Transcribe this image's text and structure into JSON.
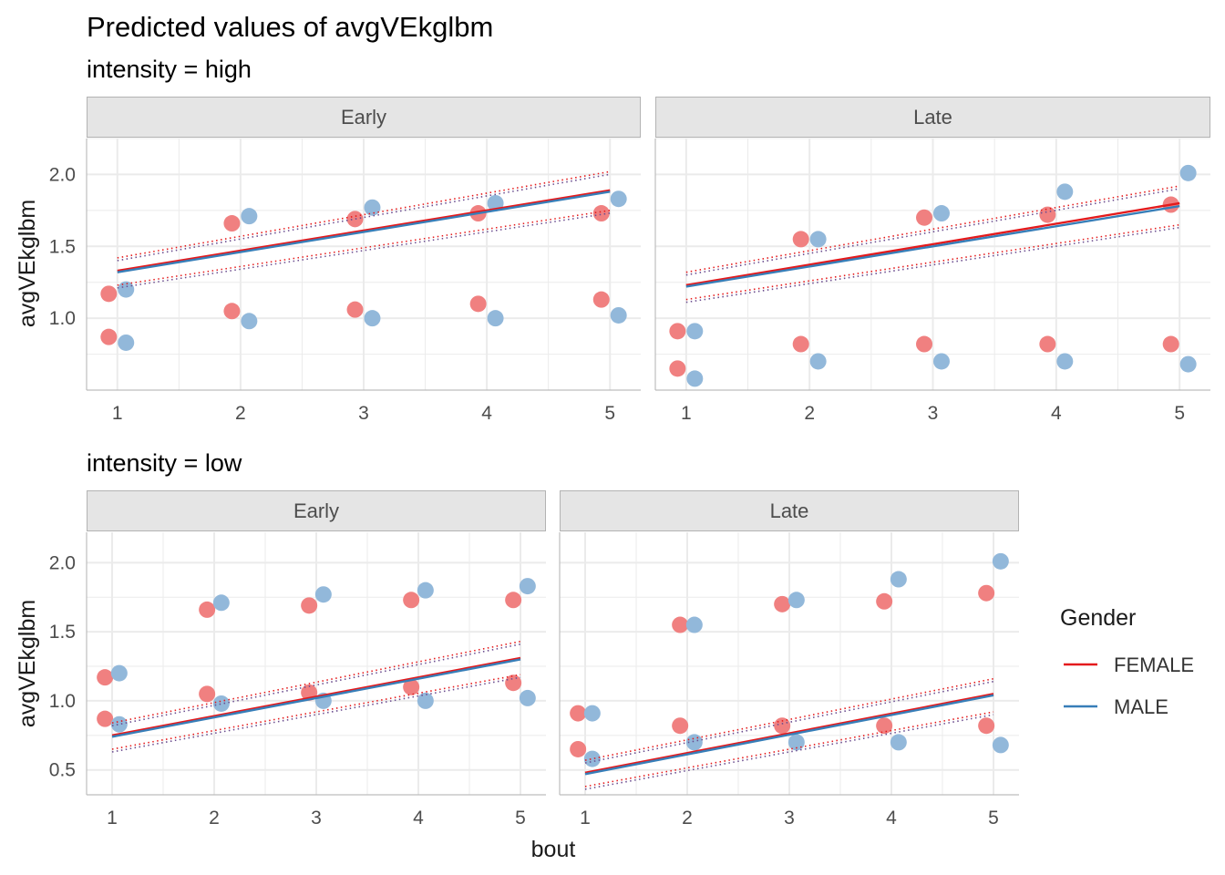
{
  "title": "Predicted values of avgVEkglbm",
  "x_label": "bout",
  "y_label": "avgVEkglbm",
  "legend": {
    "title": "Gender",
    "placement": "right",
    "entries": [
      {
        "name": "FEMALE",
        "color": "#E41A1C"
      },
      {
        "name": "MALE",
        "color": "#377EB8"
      }
    ]
  },
  "colors": {
    "strip_fill": "#e5e5e5",
    "strip_border": "#b3b3b3",
    "grid": "#ebebeb",
    "female_point": "#F08080",
    "male_point": "#92B8DA",
    "female_line": "#E41A1C",
    "male_line": "#377EB8",
    "ci_line": "#6b4c8e"
  },
  "chart_data": [
    {
      "type": "scatter",
      "group_title": "intensity = high",
      "facet": "Early",
      "x_ticks": [
        1,
        2,
        3,
        4,
        5
      ],
      "y_ticks": [
        1.0,
        1.5,
        2.0
      ],
      "y_tick_labels": [
        "1.0",
        "1.5",
        "2.0"
      ],
      "xlim": [
        0.75,
        5.25
      ],
      "ylim": [
        0.5,
        2.25
      ],
      "female_points": [
        [
          1,
          1.17
        ],
        [
          1,
          0.87
        ],
        [
          2,
          1.66
        ],
        [
          2,
          1.05
        ],
        [
          3,
          1.69
        ],
        [
          3,
          1.06
        ],
        [
          4,
          1.73
        ],
        [
          4,
          1.1
        ],
        [
          5,
          1.73
        ],
        [
          5,
          1.13
        ]
      ],
      "male_points": [
        [
          1,
          1.2
        ],
        [
          1,
          0.83
        ],
        [
          2,
          1.71
        ],
        [
          2,
          0.98
        ],
        [
          3,
          1.77
        ],
        [
          3,
          1.0
        ],
        [
          4,
          1.8
        ],
        [
          4,
          1.0
        ],
        [
          5,
          1.83
        ],
        [
          5,
          1.02
        ]
      ],
      "female_fit": [
        1.33,
        1.89
      ],
      "male_fit": [
        1.32,
        1.88
      ],
      "ci_upper": [
        1.42,
        2.02
      ],
      "ci_lower": [
        1.23,
        1.75
      ]
    },
    {
      "type": "scatter",
      "group_title": "intensity = high",
      "facet": "Late",
      "x_ticks": [
        1,
        2,
        3,
        4,
        5
      ],
      "y_ticks": [
        1.0,
        1.5,
        2.0
      ],
      "y_tick_labels": [
        "1.0",
        "1.5",
        "2.0"
      ],
      "xlim": [
        0.75,
        5.25
      ],
      "ylim": [
        0.5,
        2.25
      ],
      "female_points": [
        [
          1,
          0.91
        ],
        [
          1,
          0.65
        ],
        [
          2,
          1.55
        ],
        [
          2,
          0.82
        ],
        [
          3,
          1.7
        ],
        [
          3,
          0.82
        ],
        [
          4,
          1.72
        ],
        [
          4,
          0.82
        ],
        [
          5,
          1.79
        ],
        [
          5,
          0.82
        ]
      ],
      "male_points": [
        [
          1,
          0.91
        ],
        [
          1,
          0.58
        ],
        [
          2,
          1.55
        ],
        [
          2,
          0.7
        ],
        [
          3,
          1.73
        ],
        [
          3,
          0.7
        ],
        [
          4,
          1.88
        ],
        [
          4,
          0.7
        ],
        [
          5,
          2.01
        ],
        [
          5,
          0.68
        ]
      ],
      "female_fit": [
        1.23,
        1.8
      ],
      "male_fit": [
        1.22,
        1.78
      ],
      "ci_upper": [
        1.32,
        1.92
      ],
      "ci_lower": [
        1.13,
        1.65
      ]
    },
    {
      "type": "scatter",
      "group_title": "intensity = low",
      "facet": "Early",
      "x_ticks": [
        1,
        2,
        3,
        4,
        5
      ],
      "y_ticks": [
        0.5,
        1.0,
        1.5,
        2.0
      ],
      "y_tick_labels": [
        "0.5",
        "1.0",
        "1.5",
        "2.0"
      ],
      "xlim": [
        0.75,
        5.25
      ],
      "ylim": [
        0.32,
        2.22
      ],
      "female_points": [
        [
          1,
          1.17
        ],
        [
          1,
          0.87
        ],
        [
          2,
          1.66
        ],
        [
          2,
          1.05
        ],
        [
          3,
          1.69
        ],
        [
          3,
          1.06
        ],
        [
          4,
          1.73
        ],
        [
          4,
          1.1
        ],
        [
          5,
          1.73
        ],
        [
          5,
          1.13
        ]
      ],
      "male_points": [
        [
          1,
          1.2
        ],
        [
          1,
          0.83
        ],
        [
          2,
          1.71
        ],
        [
          2,
          0.98
        ],
        [
          3,
          1.77
        ],
        [
          3,
          1.0
        ],
        [
          4,
          1.8
        ],
        [
          4,
          1.0
        ],
        [
          5,
          1.83
        ],
        [
          5,
          1.02
        ]
      ],
      "female_fit": [
        0.75,
        1.31
      ],
      "male_fit": [
        0.74,
        1.3
      ],
      "ci_upper": [
        0.84,
        1.43
      ],
      "ci_lower": [
        0.65,
        1.19
      ]
    },
    {
      "type": "scatter",
      "group_title": "intensity = low",
      "facet": "Late",
      "x_ticks": [
        1,
        2,
        3,
        4,
        5
      ],
      "y_ticks": [
        0.5,
        1.0,
        1.5,
        2.0
      ],
      "y_tick_labels": [
        "0.5",
        "1.0",
        "1.5",
        "2.0"
      ],
      "xlim": [
        0.75,
        5.25
      ],
      "ylim": [
        0.32,
        2.22
      ],
      "female_points": [
        [
          1,
          0.91
        ],
        [
          1,
          0.65
        ],
        [
          2,
          1.55
        ],
        [
          2,
          0.82
        ],
        [
          3,
          1.7
        ],
        [
          3,
          0.82
        ],
        [
          4,
          1.72
        ],
        [
          4,
          0.82
        ],
        [
          5,
          1.78
        ],
        [
          5,
          0.82
        ]
      ],
      "male_points": [
        [
          1,
          0.91
        ],
        [
          1,
          0.58
        ],
        [
          2,
          1.55
        ],
        [
          2,
          0.7
        ],
        [
          3,
          1.73
        ],
        [
          3,
          0.7
        ],
        [
          4,
          1.88
        ],
        [
          4,
          0.7
        ],
        [
          5,
          2.01
        ],
        [
          5,
          0.68
        ]
      ],
      "female_fit": [
        0.48,
        1.05
      ],
      "male_fit": [
        0.47,
        1.04
      ],
      "ci_upper": [
        0.57,
        1.16
      ],
      "ci_lower": [
        0.38,
        0.92
      ]
    }
  ]
}
